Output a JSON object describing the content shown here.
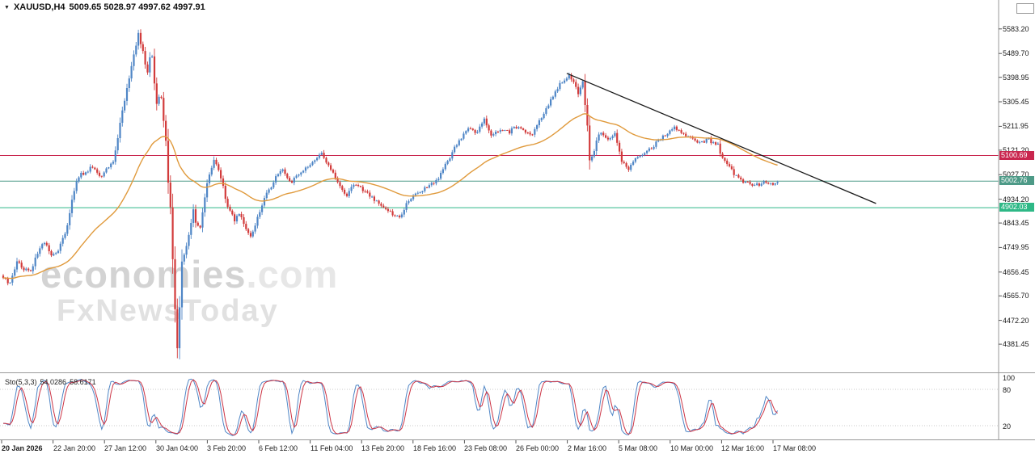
{
  "header": {
    "symbol_period": "XAUUSD,H4",
    "ohlc": "5009.65 5028.97 4997.62 4997.91"
  },
  "watermark": {
    "line1": "economies",
    "line1_suffix": ".com",
    "line2": "FxNewsToday"
  },
  "chart_data": {
    "type": "candlestick",
    "symbol": "XAUUSD",
    "timeframe": "H4",
    "bar_open": 5009.65,
    "bar_high": 5028.97,
    "bar_low": 4997.62,
    "bar_close": 4997.91,
    "ylim": [
      4274,
      5632
    ],
    "y_ticks": [
      "5583.20",
      "5489.70",
      "5398.95",
      "5305.45",
      "5211.95",
      "5121.20",
      "5027.70",
      "4934.20",
      "4843.45",
      "4749.95",
      "4656.45",
      "4565.70",
      "4472.20",
      "4381.45"
    ],
    "x_labels": [
      "20 Jan 2026",
      "22 Jan 20:00",
      "27 Jan 12:00",
      "30 Jan 04:00",
      "3 Feb 20:00",
      "6 Feb 12:00",
      "11 Feb 04:00",
      "13 Feb 20:00",
      "18 Feb 16:00",
      "23 Feb 08:00",
      "26 Feb 00:00",
      "2 Mar 16:00",
      "5 Mar 08:00",
      "10 Mar 00:00",
      "12 Mar 16:00",
      "17 Mar 08:00"
    ],
    "grid": "none",
    "up_color": "#4f86c6",
    "down_color": "#d23b3b",
    "n_candles": 339,
    "anchors": [
      [
        0,
        4640
      ],
      [
        3,
        4610
      ],
      [
        6,
        4700
      ],
      [
        9,
        4665
      ],
      [
        12,
        4660
      ],
      [
        15,
        4730
      ],
      [
        18,
        4770
      ],
      [
        21,
        4720
      ],
      [
        24,
        4740
      ],
      [
        28,
        4830
      ],
      [
        30,
        4930
      ],
      [
        32,
        5000
      ],
      [
        34,
        5035
      ],
      [
        36,
        5030
      ],
      [
        38,
        5060
      ],
      [
        40,
        5055
      ],
      [
        42,
        5020
      ],
      [
        44,
        5030
      ],
      [
        46,
        5060
      ],
      [
        48,
        5080
      ],
      [
        50,
        5170
      ],
      [
        52,
        5270
      ],
      [
        55,
        5400
      ],
      [
        57,
        5480
      ],
      [
        59,
        5565
      ],
      [
        60,
        5520
      ],
      [
        61,
        5500
      ],
      [
        62,
        5450
      ],
      [
        63,
        5420
      ],
      [
        64,
        5470
      ],
      [
        65,
        5480
      ],
      [
        66,
        5380
      ],
      [
        67,
        5300
      ],
      [
        68,
        5330
      ],
      [
        69,
        5320
      ],
      [
        70,
        5230
      ],
      [
        71,
        5150
      ],
      [
        72,
        5000
      ],
      [
        73,
        4900
      ],
      [
        74,
        4700
      ],
      [
        75,
        4520
      ],
      [
        76,
        4360
      ],
      [
        77,
        4520
      ],
      [
        78,
        4700
      ],
      [
        79,
        4720
      ],
      [
        80,
        4760
      ],
      [
        82,
        4850
      ],
      [
        83,
        4890
      ],
      [
        84,
        4850
      ],
      [
        86,
        4820
      ],
      [
        88,
        4940
      ],
      [
        89,
        5000
      ],
      [
        91,
        5060
      ],
      [
        92,
        5080
      ],
      [
        94,
        5050
      ],
      [
        95,
        5020
      ],
      [
        97,
        4940
      ],
      [
        98,
        4900
      ],
      [
        100,
        4870
      ],
      [
        101,
        4850
      ],
      [
        103,
        4880
      ],
      [
        104,
        4870
      ],
      [
        106,
        4820
      ],
      [
        108,
        4790
      ],
      [
        110,
        4840
      ],
      [
        111,
        4860
      ],
      [
        113,
        4910
      ],
      [
        114,
        4940
      ],
      [
        116,
        4970
      ],
      [
        118,
        5000
      ],
      [
        120,
        5030
      ],
      [
        122,
        5045
      ],
      [
        124,
        5015
      ],
      [
        126,
        5000
      ],
      [
        128,
        5020
      ],
      [
        130,
        5030
      ],
      [
        132,
        5050
      ],
      [
        134,
        5060
      ],
      [
        136,
        5080
      ],
      [
        139,
        5110
      ],
      [
        141,
        5080
      ],
      [
        143,
        5050
      ],
      [
        145,
        5010
      ],
      [
        147,
        4980
      ],
      [
        149,
        4960
      ],
      [
        150,
        4950
      ],
      [
        152,
        4975
      ],
      [
        154,
        4990
      ],
      [
        156,
        4975
      ],
      [
        158,
        4960
      ],
      [
        160,
        4945
      ],
      [
        162,
        4930
      ],
      [
        164,
        4915
      ],
      [
        166,
        4900
      ],
      [
        168,
        4890
      ],
      [
        170,
        4880
      ],
      [
        172,
        4865
      ],
      [
        173,
        4860
      ],
      [
        175,
        4900
      ],
      [
        177,
        4930
      ],
      [
        179,
        4945
      ],
      [
        181,
        4960
      ],
      [
        183,
        4970
      ],
      [
        185,
        4980
      ],
      [
        187,
        4995
      ],
      [
        190,
        5010
      ],
      [
        192,
        5050
      ],
      [
        195,
        5090
      ],
      [
        197,
        5130
      ],
      [
        199,
        5160
      ],
      [
        201,
        5180
      ],
      [
        203,
        5200
      ],
      [
        205,
        5195
      ],
      [
        207,
        5190
      ],
      [
        209,
        5230
      ],
      [
        210,
        5240
      ],
      [
        211,
        5210
      ],
      [
        213,
        5180
      ],
      [
        215,
        5190
      ],
      [
        217,
        5200
      ],
      [
        219,
        5195
      ],
      [
        221,
        5190
      ],
      [
        222,
        5200
      ],
      [
        224,
        5210
      ],
      [
        226,
        5205
      ],
      [
        227,
        5200
      ],
      [
        229,
        5190
      ],
      [
        231,
        5180
      ],
      [
        233,
        5215
      ],
      [
        235,
        5250
      ],
      [
        237,
        5275
      ],
      [
        238,
        5290
      ],
      [
        240,
        5330
      ],
      [
        242,
        5360
      ],
      [
        244,
        5385
      ],
      [
        245,
        5390
      ],
      [
        246,
        5400
      ],
      [
        247,
        5405
      ],
      [
        248,
        5390
      ],
      [
        249,
        5380
      ],
      [
        250,
        5360
      ],
      [
        251,
        5340
      ],
      [
        252,
        5365
      ],
      [
        253,
        5390
      ],
      [
        254,
        5300
      ],
      [
        255,
        5220
      ],
      [
        256,
        5080
      ],
      [
        257,
        5100
      ],
      [
        258,
        5120
      ],
      [
        259,
        5160
      ],
      [
        261,
        5190
      ],
      [
        263,
        5170
      ],
      [
        264,
        5160
      ],
      [
        266,
        5175
      ],
      [
        267,
        5180
      ],
      [
        269,
        5120
      ],
      [
        270,
        5080
      ],
      [
        272,
        5060
      ],
      [
        273,
        5050
      ],
      [
        275,
        5075
      ],
      [
        276,
        5090
      ],
      [
        278,
        5100
      ],
      [
        280,
        5110
      ],
      [
        282,
        5125
      ],
      [
        284,
        5140
      ],
      [
        286,
        5155
      ],
      [
        288,
        5170
      ],
      [
        290,
        5190
      ],
      [
        293,
        5210
      ],
      [
        294,
        5200
      ],
      [
        296,
        5190
      ],
      [
        298,
        5180
      ],
      [
        300,
        5170
      ],
      [
        302,
        5160
      ],
      [
        304,
        5150
      ],
      [
        306,
        5155
      ],
      [
        308,
        5160
      ],
      [
        310,
        5150
      ],
      [
        312,
        5140
      ],
      [
        313,
        5110
      ],
      [
        315,
        5080
      ],
      [
        317,
        5055
      ],
      [
        319,
        5030
      ],
      [
        321,
        5015
      ],
      [
        323,
        5000
      ],
      [
        325,
        4995
      ],
      [
        327,
        4990
      ],
      [
        329,
        4988
      ],
      [
        330,
        4985
      ],
      [
        331,
        4995
      ],
      [
        333,
        5000
      ],
      [
        335,
        4995
      ],
      [
        336,
        4990
      ],
      [
        337,
        4995
      ],
      [
        338,
        4998
      ]
    ],
    "ma": {
      "period": 50,
      "color": "#e09a3c"
    },
    "trendline": {
      "from": {
        "index": 246,
        "price": 5414
      },
      "to": {
        "index": 381,
        "price": 4918
      },
      "color": "#1a1a1a"
    },
    "hlines": [
      {
        "price": 5100.69,
        "label": "5100.69",
        "color": "#c9264e"
      },
      {
        "price": 5002.76,
        "label": "5002.76",
        "color": "#4d9a87"
      },
      {
        "price": 4902.03,
        "label": "4902.03",
        "color": "#2eb886"
      }
    ],
    "indicator": {
      "name": "Sto(5,3,3)",
      "values": [
        "54.0286",
        "58.6171"
      ],
      "params": {
        "k": 5,
        "d": 3,
        "slowing": 3
      },
      "range": [
        0,
        100
      ],
      "levels": [
        20,
        80
      ],
      "axis_labels": [
        "100",
        "80",
        "20"
      ],
      "main_color": "#4f86c6",
      "signal_color": "#cc3344"
    }
  }
}
